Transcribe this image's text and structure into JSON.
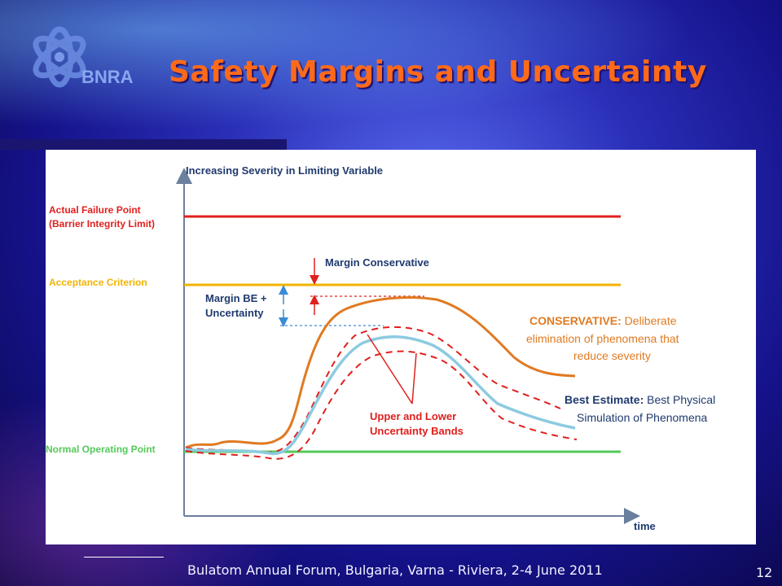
{
  "slide": {
    "title": "Safety Margins and Uncertainty",
    "logo_text": "BNRA",
    "footer": "Bulatom Annual Forum, Bulgaria, Varna - Riviera, 2-4 June 2011",
    "page_number": "12"
  },
  "diagram": {
    "y_axis_label": "Increasing Severity in Limiting Variable",
    "x_axis_label": "time",
    "levels": {
      "failure_line1": "Actual Failure Point",
      "failure_line2": "(Barrier Integrity Limit)",
      "acceptance": "Acceptance Criterion",
      "normal": "Normal Operating Point"
    },
    "margin_conservative": "Margin Conservative",
    "margin_be_line1": "Margin BE +",
    "margin_be_line2": "Uncertainty",
    "conservative": {
      "bold": "CONSERVATIVE:",
      "line1_rest": " Deliberate",
      "line2": "elimination of phenomena that",
      "line3": "reduce severity"
    },
    "best_estimate": {
      "bold": "Best Estimate:",
      "line1_rest": " Best Physical",
      "line2": "Simulation of Phenomena"
    },
    "bands_line1": "Upper and Lower",
    "bands_line2": "Uncertainty Bands",
    "colors": {
      "failure": "#e0201e",
      "acceptance": "#f2b400",
      "normal": "#54c95a",
      "conservative": "#e07a22",
      "best_estimate": "#8ccbe0",
      "bands": "#e0201e",
      "label_text": "#1f3a6e",
      "margin_arrows": "#e0201e",
      "margin_guides": "#3a8bd6"
    }
  }
}
